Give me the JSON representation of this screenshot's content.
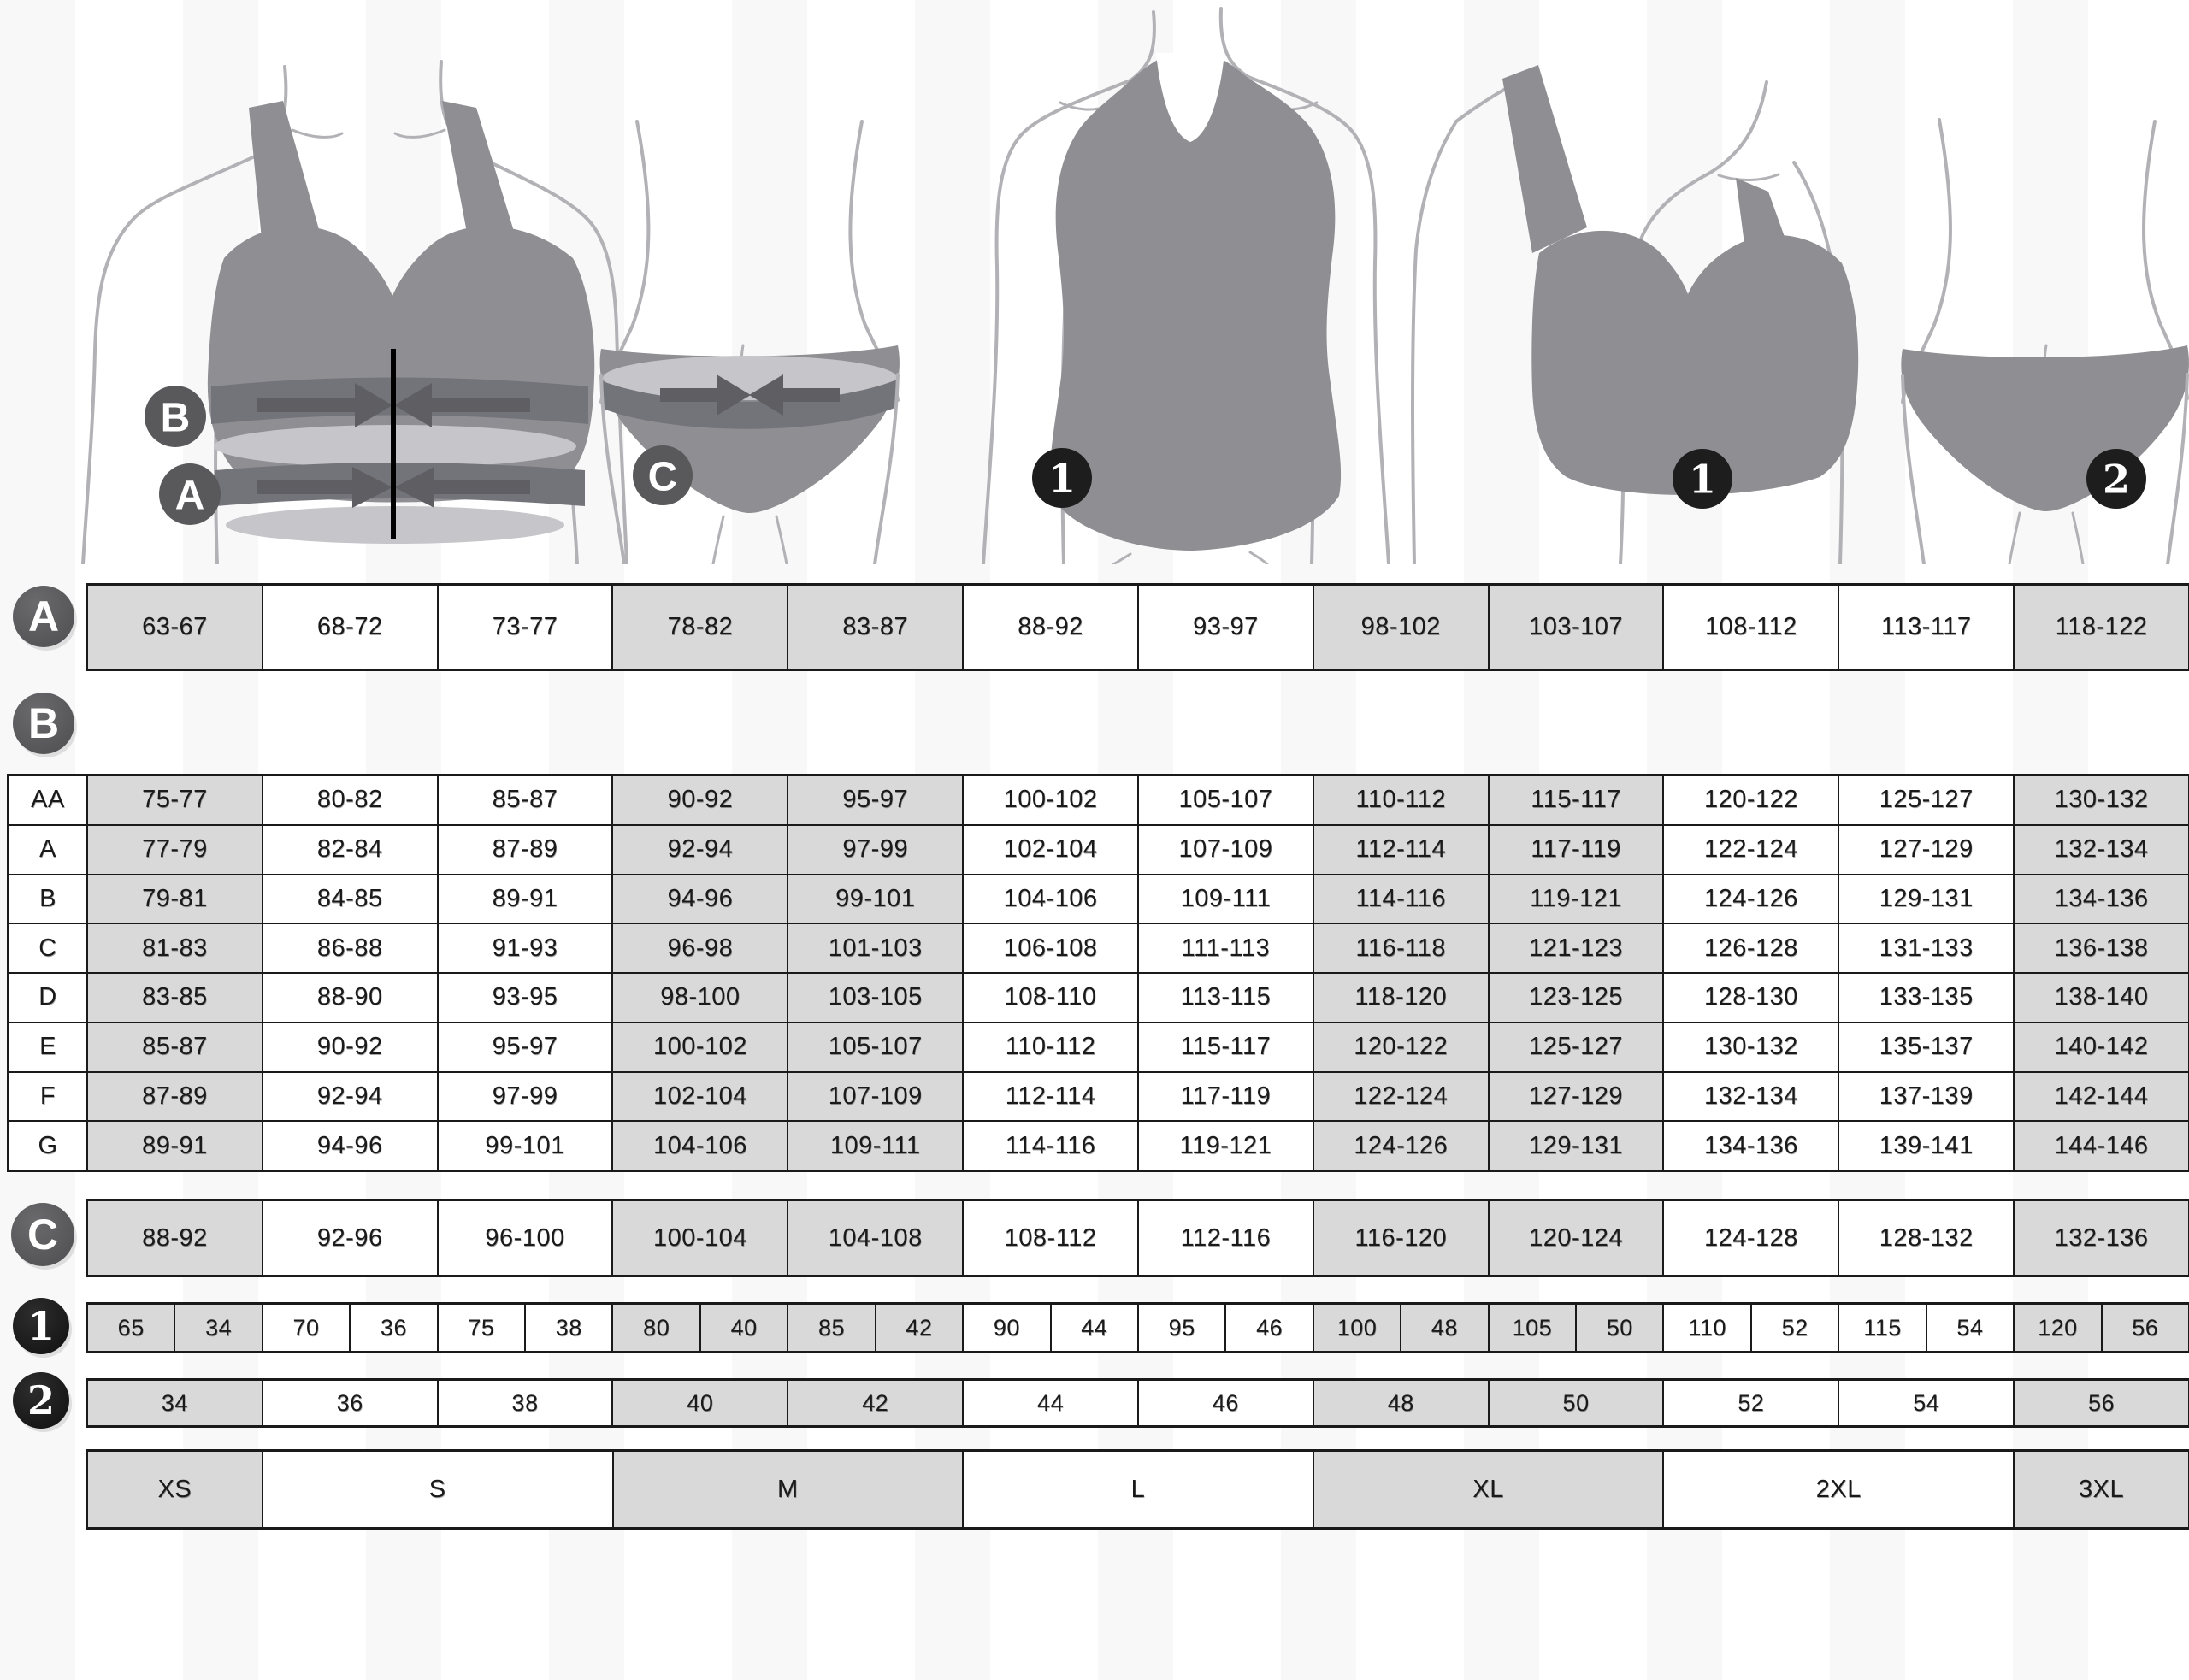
{
  "figures": {
    "fig1": {
      "name": "bra-torso-with-underbust-and-bust-bands",
      "badges": {
        "b": "B",
        "a": "A"
      }
    },
    "fig2": {
      "name": "hips-with-panty-and-hip-band",
      "badge": "C"
    },
    "fig3": {
      "name": "bodysuit-figure",
      "badge": "1"
    },
    "fig4": {
      "name": "bra-figure",
      "badge": "1"
    },
    "fig5": {
      "name": "panty-figure",
      "badge": "2"
    }
  },
  "tables": {
    "shading": [
      1,
      0,
      0,
      1,
      1,
      0,
      0,
      1,
      1,
      0,
      0,
      1
    ],
    "size_shading": [
      1,
      0,
      1,
      0,
      1,
      0,
      1
    ],
    "underbust": {
      "badge": "A",
      "values": [
        "63-67",
        "68-72",
        "73-77",
        "78-82",
        "83-87",
        "88-92",
        "93-97",
        "98-102",
        "103-107",
        "108-112",
        "113-117",
        "118-122"
      ]
    },
    "cup_table": {
      "badge": "B",
      "rows": [
        {
          "cup": "AA",
          "values": [
            "75-77",
            "80-82",
            "85-87",
            "90-92",
            "95-97",
            "100-102",
            "105-107",
            "110-112",
            "115-117",
            "120-122",
            "125-127",
            "130-132"
          ]
        },
        {
          "cup": "A",
          "values": [
            "77-79",
            "82-84",
            "87-89",
            "92-94",
            "97-99",
            "102-104",
            "107-109",
            "112-114",
            "117-119",
            "122-124",
            "127-129",
            "132-134"
          ]
        },
        {
          "cup": "B",
          "values": [
            "79-81",
            "84-85",
            "89-91",
            "94-96",
            "99-101",
            "104-106",
            "109-111",
            "114-116",
            "119-121",
            "124-126",
            "129-131",
            "134-136"
          ]
        },
        {
          "cup": "C",
          "values": [
            "81-83",
            "86-88",
            "91-93",
            "96-98",
            "101-103",
            "106-108",
            "111-113",
            "116-118",
            "121-123",
            "126-128",
            "131-133",
            "136-138"
          ]
        },
        {
          "cup": "D",
          "values": [
            "83-85",
            "88-90",
            "93-95",
            "98-100",
            "103-105",
            "108-110",
            "113-115",
            "118-120",
            "123-125",
            "128-130",
            "133-135",
            "138-140"
          ]
        },
        {
          "cup": "E",
          "values": [
            "85-87",
            "90-92",
            "95-97",
            "100-102",
            "105-107",
            "110-112",
            "115-117",
            "120-122",
            "125-127",
            "130-132",
            "135-137",
            "140-142"
          ]
        },
        {
          "cup": "F",
          "values": [
            "87-89",
            "92-94",
            "97-99",
            "102-104",
            "107-109",
            "112-114",
            "117-119",
            "122-124",
            "127-129",
            "132-134",
            "137-139",
            "142-144"
          ]
        },
        {
          "cup": "G",
          "values": [
            "89-91",
            "94-96",
            "99-101",
            "104-106",
            "109-111",
            "114-116",
            "119-121",
            "124-126",
            "129-131",
            "134-136",
            "139-141",
            "144-146"
          ]
        }
      ]
    },
    "hips": {
      "badge": "C",
      "values": [
        "88-92",
        "92-96",
        "96-100",
        "100-104",
        "104-108",
        "108-112",
        "112-116",
        "116-120",
        "120-124",
        "124-128",
        "128-132",
        "132-136"
      ]
    },
    "bra_sizes": {
      "badge": "1",
      "pairs": [
        [
          "65",
          "34"
        ],
        [
          "70",
          "36"
        ],
        [
          "75",
          "38"
        ],
        [
          "80",
          "40"
        ],
        [
          "85",
          "42"
        ],
        [
          "90",
          "44"
        ],
        [
          "95",
          "46"
        ],
        [
          "100",
          "48"
        ],
        [
          "105",
          "50"
        ],
        [
          "110",
          "52"
        ],
        [
          "115",
          "54"
        ],
        [
          "120",
          "56"
        ]
      ]
    },
    "dress_sizes": {
      "badge": "2",
      "values": [
        "34",
        "36",
        "38",
        "40",
        "42",
        "44",
        "46",
        "48",
        "50",
        "52",
        "54",
        "56"
      ]
    },
    "intl_sizes": [
      {
        "label": "XS",
        "span": 1
      },
      {
        "label": "S",
        "span": 2
      },
      {
        "label": "M",
        "span": 2
      },
      {
        "label": "L",
        "span": 2
      },
      {
        "label": "XL",
        "span": 2
      },
      {
        "label": "2XL",
        "span": 2
      },
      {
        "label": "3XL",
        "span": 1
      }
    ]
  },
  "colors": {
    "cell_shaded": "#d9d9d9",
    "cell_plain": "#ffffff",
    "grid_border": "#1a1a1a",
    "letter_badge": "#59595b",
    "number_badge": "#1d1d1d",
    "silhouette_garment": "#8e8e93",
    "silhouette_outline": "#b2b2b6",
    "measure_band": "#73737a",
    "band_highlight": "#c6c6ca",
    "text": "#1a1a1a"
  }
}
